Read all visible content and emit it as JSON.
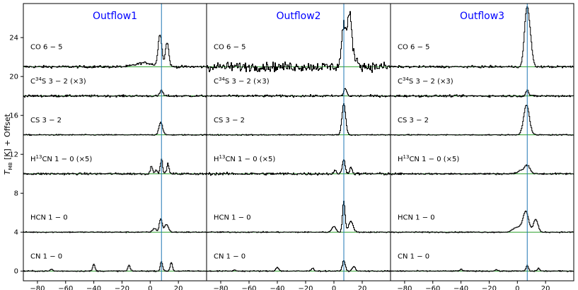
{
  "chart_data": {
    "type": "line",
    "ylabel": "T_MB [K] + Offset",
    "ylabel_main": "T",
    "ylabel_sub": "MB",
    "ylabel_rest": " [K] + Offset",
    "xlim": [
      -90,
      40
    ],
    "ylim": [
      -1,
      27.5
    ],
    "x_ticks": [
      -80,
      -60,
      -40,
      -20,
      0,
      20
    ],
    "y_ticks": [
      0,
      4,
      8,
      12,
      16,
      20,
      24
    ],
    "colors": {
      "spectrum": "#000000",
      "baseline": "#2ca02c",
      "vline": "#1f77b4",
      "title": "#0000ff"
    },
    "panels": [
      {
        "title": "Outflow1",
        "vline_x": 8
      },
      {
        "title": "Outflow2",
        "vline_x": 7
      },
      {
        "title": "Outflow3",
        "vline_x": 7
      }
    ],
    "lines": [
      {
        "label_main": "CO",
        "label_sup": "",
        "label_post": "",
        "transition": "6 − 5",
        "factor": "",
        "offset": 21,
        "components": [
          [
            {
              "x": 7,
              "w": 1.3,
              "a": 3.3
            },
            {
              "x": 12,
              "w": 1.2,
              "a": 2.5
            },
            {
              "x": -4,
              "w": 6,
              "a": 0.4
            }
          ],
          [
            {
              "x": 7,
              "w": 1.5,
              "a": 4.2
            },
            {
              "x": 11,
              "w": 1.4,
              "a": 4.4
            },
            {
              "x": 13,
              "w": 3,
              "a": 1.2
            }
          ],
          [
            {
              "x": 6.5,
              "w": 1.6,
              "a": 5.4
            },
            {
              "x": 9,
              "w": 1.5,
              "a": 2.5
            }
          ]
        ],
        "noise": [
          0.12,
          0.45,
          0.1
        ]
      },
      {
        "label_main": "C",
        "label_sup": "34",
        "label_post": "S",
        "transition": "3 − 2",
        "factor": "(×3)",
        "offset": 18,
        "components": [
          [
            {
              "x": 8,
              "w": 1,
              "a": 0.6
            }
          ],
          [
            {
              "x": 8,
              "w": 1,
              "a": 0.8
            }
          ],
          [
            {
              "x": 7,
              "w": 1,
              "a": 0.6
            }
          ]
        ],
        "noise": [
          0.1,
          0.1,
          0.1
        ]
      },
      {
        "label_main": "CS",
        "label_sup": "",
        "label_post": "",
        "transition": "3 − 2",
        "factor": "",
        "offset": 14,
        "components": [
          [
            {
              "x": 7.5,
              "w": 1.3,
              "a": 1.3
            }
          ],
          [
            {
              "x": 7,
              "w": 1.3,
              "a": 3.2
            }
          ],
          [
            {
              "x": 6.5,
              "w": 2,
              "a": 3.1
            }
          ]
        ],
        "noise": [
          0.05,
          0.05,
          0.05
        ]
      },
      {
        "label_main": "H",
        "label_sup": "13",
        "label_post": "CN",
        "transition": "1 − 0",
        "factor": "(×5)",
        "offset": 10,
        "components": [
          [
            {
              "x": 8,
              "w": 0.8,
              "a": 1.5
            },
            {
              "x": 12.5,
              "w": 0.8,
              "a": 1
            },
            {
              "x": 1,
              "w": 0.8,
              "a": 0.8
            },
            {
              "x": 4,
              "w": 0.8,
              "a": 0.4
            }
          ],
          [
            {
              "x": 7,
              "w": 1,
              "a": 1.5
            },
            {
              "x": 12,
              "w": 1,
              "a": 0.6
            },
            {
              "x": 1,
              "w": 1,
              "a": 0.3
            }
          ],
          [
            {
              "x": 7,
              "w": 2,
              "a": 0.9
            },
            {
              "x": 2,
              "w": 2,
              "a": 0.3
            }
          ]
        ],
        "noise": [
          0.1,
          0.12,
          0.08
        ]
      },
      {
        "label_main": "HCN",
        "label_sup": "",
        "label_post": "",
        "transition": "1 − 0",
        "factor": "",
        "offset": 4,
        "components": [
          [
            {
              "x": 7.5,
              "w": 1,
              "a": 1.4
            },
            {
              "x": 11.5,
              "w": 1.4,
              "a": 0.8
            },
            {
              "x": 3,
              "w": 1.2,
              "a": 0.4
            }
          ],
          [
            {
              "x": 7,
              "w": 0.9,
              "a": 3.2
            },
            {
              "x": 12,
              "w": 1.6,
              "a": 1.1
            },
            {
              "x": 0,
              "w": 1.4,
              "a": 0.6
            }
          ],
          [
            {
              "x": 6,
              "w": 2,
              "a": 2.1
            },
            {
              "x": 13,
              "w": 1.6,
              "a": 1.3
            },
            {
              "x": 0,
              "w": 3,
              "a": 0.5
            }
          ]
        ],
        "noise": [
          0.05,
          0.05,
          0.05
        ]
      },
      {
        "label_main": "CN",
        "label_sup": "",
        "label_post": "",
        "transition": "1 − 0",
        "factor": "",
        "offset": 0,
        "components": [
          [
            {
              "x": 8,
              "w": 0.8,
              "a": 1
            },
            {
              "x": 15,
              "w": 0.8,
              "a": 0.9
            },
            {
              "x": -40,
              "w": 0.8,
              "a": 0.7
            },
            {
              "x": -15,
              "w": 0.8,
              "a": 0.6
            },
            {
              "x": -70,
              "w": 0.8,
              "a": 0.2
            }
          ],
          [
            {
              "x": 7,
              "w": 1,
              "a": 1.1
            },
            {
              "x": 14,
              "w": 1,
              "a": 0.5
            },
            {
              "x": -40,
              "w": 1,
              "a": 0.4
            },
            {
              "x": -15,
              "w": 1,
              "a": 0.3
            },
            {
              "x": -70,
              "w": 1,
              "a": 0.1
            }
          ],
          [
            {
              "x": 7,
              "w": 0.8,
              "a": 0.6
            },
            {
              "x": 15,
              "w": 0.8,
              "a": 0.3
            },
            {
              "x": -40,
              "w": 0.8,
              "a": 0.2
            },
            {
              "x": -15,
              "w": 0.8,
              "a": 0.15
            }
          ]
        ],
        "noise": [
          0.05,
          0.05,
          0.05
        ]
      }
    ]
  }
}
